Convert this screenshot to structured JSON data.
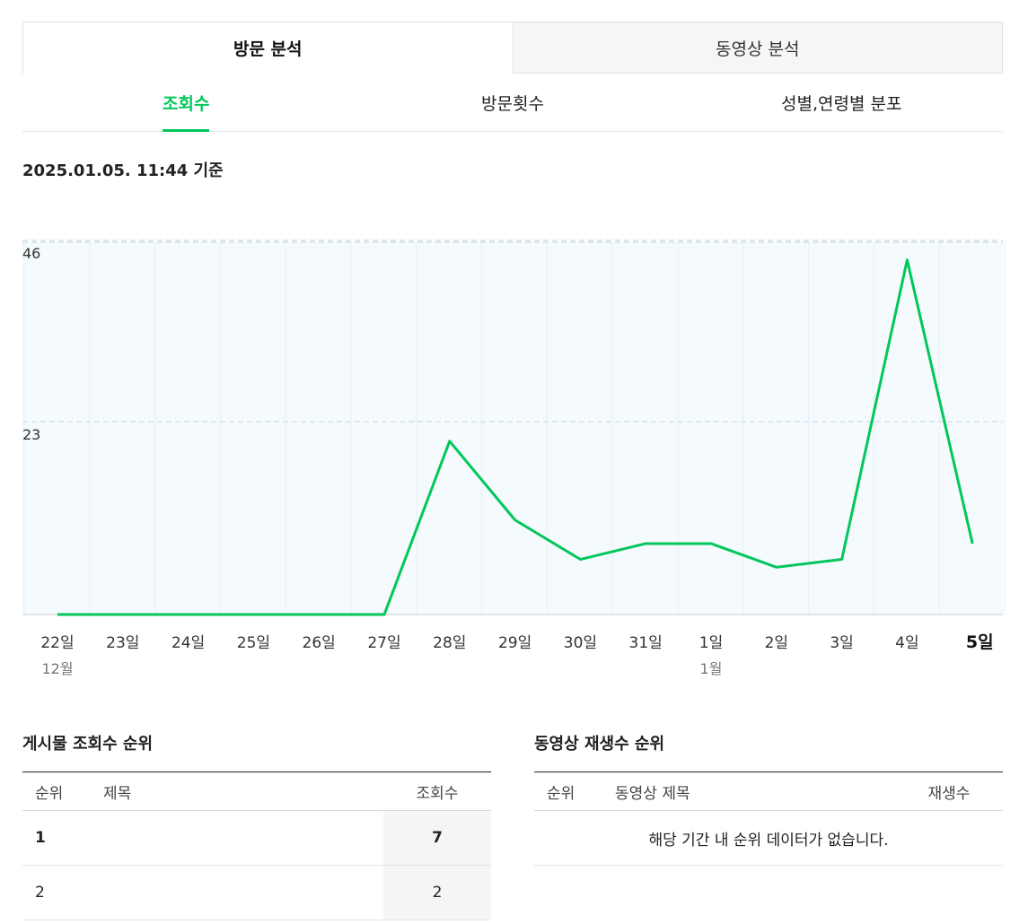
{
  "top_tabs": [
    {
      "label": "방문 분석",
      "active": true
    },
    {
      "label": "동영상 분석",
      "active": false
    }
  ],
  "sub_tabs": [
    {
      "label": "조회수",
      "active": true
    },
    {
      "label": "방문횟수",
      "active": false
    },
    {
      "label": "성별,연령별 분포",
      "active": false
    }
  ],
  "timestamp": "2025.01.05. 11:44 기준",
  "chart_data": {
    "type": "line",
    "categories": [
      "22일",
      "23일",
      "24일",
      "25일",
      "26일",
      "27일",
      "28일",
      "29일",
      "30일",
      "31일",
      "1일",
      "2일",
      "3일",
      "4일",
      "5일"
    ],
    "month_labels": [
      {
        "index": 0,
        "label": "12월"
      },
      {
        "index": 10,
        "label": "1월"
      }
    ],
    "series": [
      {
        "values": [
          0,
          0,
          0,
          0,
          0,
          0,
          22,
          12,
          7,
          9,
          9,
          6,
          7,
          45,
          9
        ]
      }
    ],
    "ylim": [
      0,
      46
    ],
    "yticks": [
      "23",
      "46"
    ],
    "grid": true,
    "line_color": "#03c75a",
    "highlight_category": "5일"
  },
  "posts_rank": {
    "title": "게시물 조회수 순위",
    "headers": {
      "rank": "순위",
      "title": "제목",
      "views": "조회수"
    },
    "rows": [
      {
        "rank": "1",
        "title": "",
        "views": "7"
      },
      {
        "rank": "2",
        "title": "",
        "views": "2"
      }
    ]
  },
  "video_rank": {
    "title": "동영상 재생수 순위",
    "headers": {
      "rank": "순위",
      "title": "동영상 제목",
      "plays": "재생수"
    },
    "empty_message": "해당 기간 내 순위 데이터가 없습니다."
  }
}
